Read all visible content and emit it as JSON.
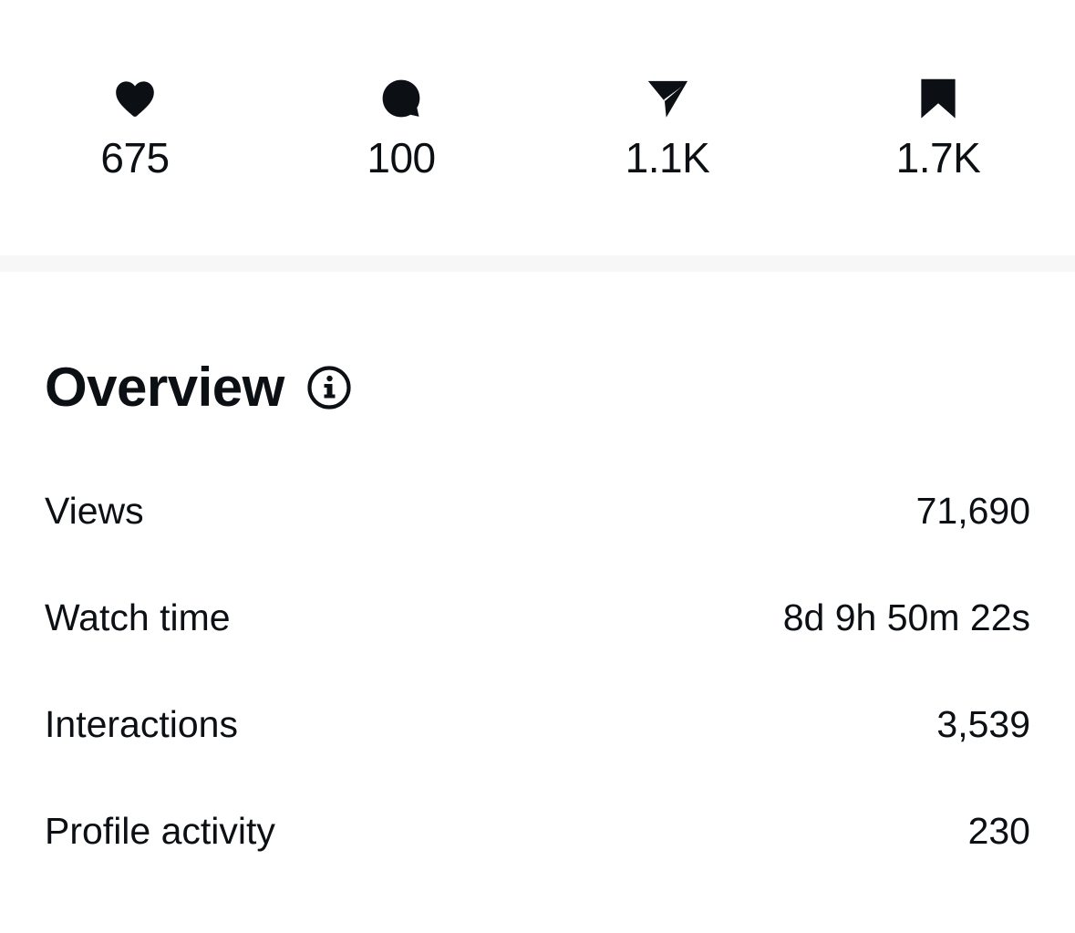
{
  "stats": {
    "likes": {
      "icon": "heart-icon",
      "count": "675"
    },
    "comments": {
      "icon": "comment-icon",
      "count": "100"
    },
    "shares": {
      "icon": "share-icon",
      "count": "1.1K"
    },
    "saves": {
      "icon": "bookmark-icon",
      "count": "1.7K"
    }
  },
  "overview": {
    "title": "Overview",
    "info_icon": "info-icon",
    "metrics": [
      {
        "label": "Views",
        "value": "71,690"
      },
      {
        "label": "Watch time",
        "value": "8d 9h 50m 22s"
      },
      {
        "label": "Interactions",
        "value": "3,539"
      },
      {
        "label": "Profile activity",
        "value": "230"
      }
    ]
  },
  "colors": {
    "text": "#0c1014",
    "background": "#ffffff",
    "divider": "#f7f7f7"
  }
}
